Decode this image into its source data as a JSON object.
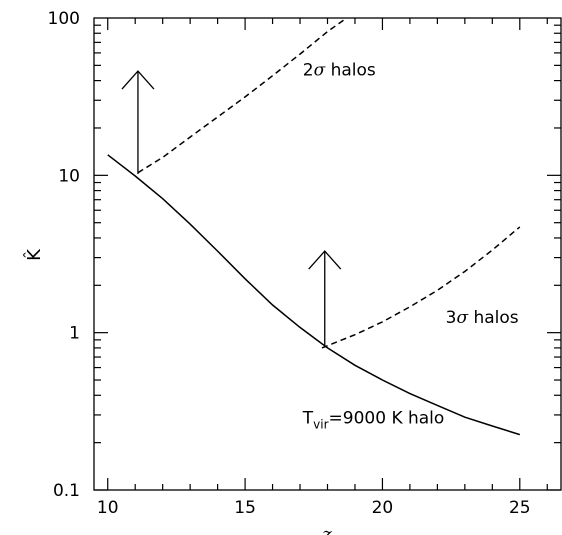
{
  "chart_data": {
    "type": "line",
    "xlabel": "z",
    "ylabel": "K̂",
    "xlim": [
      9.5,
      26.5
    ],
    "ylim": [
      0.1,
      100
    ],
    "yscale": "log",
    "grid": false,
    "x_ticks": [
      10,
      15,
      20,
      25
    ],
    "x_tick_labels": [
      "10",
      "15",
      "20",
      "25"
    ],
    "y_ticks": [
      0.1,
      1,
      10,
      100
    ],
    "y_tick_labels": [
      "0.1",
      "1",
      "10",
      "100"
    ],
    "series": [
      {
        "name": "",
        "style": "solid",
        "x": [
          10,
          11,
          12,
          13,
          14,
          15,
          16,
          17,
          18,
          19,
          20,
          21,
          22,
          23,
          24,
          25
        ],
        "y": [
          13.5,
          9.9,
          7.1,
          4.9,
          3.3,
          2.2,
          1.5,
          1.08,
          0.8,
          0.62,
          0.5,
          0.41,
          0.345,
          0.29,
          0.255,
          0.225
        ]
      },
      {
        "name": "",
        "style": "dashed",
        "x": [
          11.1,
          12,
          13,
          14,
          15,
          16,
          17,
          18,
          18.7
        ],
        "y": [
          10.4,
          13,
          17.5,
          23.5,
          31.5,
          43,
          59,
          82,
          100
        ]
      },
      {
        "name": "",
        "style": "dashed",
        "x": [
          17.8,
          19,
          20,
          21,
          22,
          23,
          24,
          25
        ],
        "y": [
          0.8,
          0.97,
          1.17,
          1.46,
          1.86,
          2.45,
          3.35,
          4.7
        ]
      }
    ],
    "arrows": [
      {
        "x": 11.1,
        "y_from": 10.2,
        "y_to": 46
      },
      {
        "x": 17.9,
        "y_from": 0.82,
        "y_to": 3.3
      }
    ],
    "annotations": [
      {
        "text_base": "2",
        "text_greek": "σ",
        "text_rest": " halos",
        "x": 17.1,
        "y": 43
      },
      {
        "text_base": "3",
        "text_greek": "σ",
        "text_rest": " halos",
        "x": 22.3,
        "y": 1.15
      },
      {
        "text_base": "T",
        "text_sub": "vir",
        "text_rest": "=9000 K halo",
        "x": 17.1,
        "y": 0.265
      }
    ]
  }
}
